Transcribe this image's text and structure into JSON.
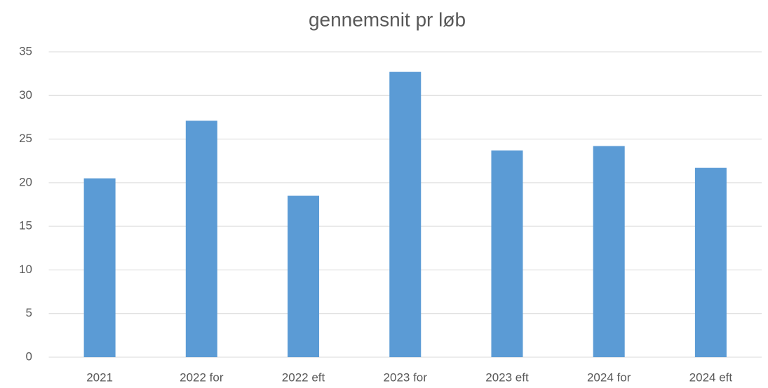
{
  "chart_data": {
    "type": "bar",
    "title": "gennemsnit pr løb",
    "categories": [
      "2021",
      "2022 for",
      "2022 eft",
      "2023 for",
      "2023 eft",
      "2024 for",
      "2024 eft"
    ],
    "values": [
      20.5,
      27.1,
      18.5,
      32.7,
      23.7,
      24.2,
      21.7
    ],
    "color": "#5b9bd5",
    "ylim": [
      0,
      35
    ],
    "yticks": [
      0,
      5,
      10,
      15,
      20,
      25,
      30,
      35
    ],
    "grid": true
  }
}
